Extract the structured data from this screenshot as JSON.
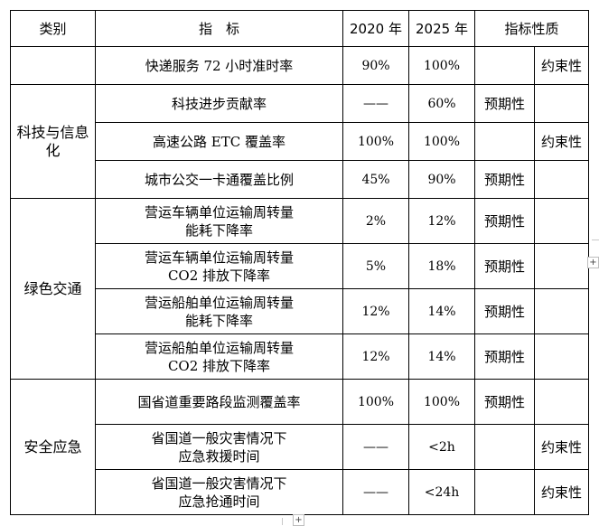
{
  "table": {
    "headers": [
      "类别",
      "指　标",
      "2020 年",
      "2025 年",
      "指标性质"
    ],
    "categories": {
      "kejian": "科技与信息化",
      "green": "绿色交通",
      "safety": "安全应急"
    },
    "rows": [
      {
        "indicator": "快递服务 72 小时准时率",
        "v2020": "90%",
        "v2025": "100%",
        "expected": "",
        "binding": "约束性"
      },
      {
        "indicator": "科技进步贡献率",
        "v2020": "——",
        "v2025": "60%",
        "expected": "预期性",
        "binding": ""
      },
      {
        "indicator": "高速公路 ETC 覆盖率",
        "v2020": "100%",
        "v2025": "100%",
        "expected": "",
        "binding": "约束性"
      },
      {
        "indicator": "城市公交一卡通覆盖比例",
        "v2020": "45%",
        "v2025": "90%",
        "expected": "预期性",
        "binding": ""
      },
      {
        "indicator_l1": "营运车辆单位运输周转量",
        "indicator_l2": "能耗下降率",
        "v2020": "2%",
        "v2025": "12%",
        "expected": "预期性",
        "binding": ""
      },
      {
        "indicator_l1": "营运车辆单位运输周转量",
        "indicator_l2": "CO2 排放下降率",
        "v2020": "5%",
        "v2025": "18%",
        "expected": "预期性",
        "binding": ""
      },
      {
        "indicator_l1": "营运船舶单位运输周转量",
        "indicator_l2": "能耗下降率",
        "v2020": "12%",
        "v2025": "14%",
        "expected": "预期性",
        "binding": ""
      },
      {
        "indicator_l1": "营运船舶单位运输周转量",
        "indicator_l2": "CO2 排放下降率",
        "v2020": "12%",
        "v2025": "14%",
        "expected": "预期性",
        "binding": ""
      },
      {
        "indicator": "国省道重要路段监测覆盖率",
        "v2020": "100%",
        "v2025": "100%",
        "expected": "预期性",
        "binding": ""
      },
      {
        "indicator_l1": "省国道一般灾害情况下",
        "indicator_l2": "应急救援时间",
        "v2020": "——",
        "v2025": "<2h",
        "expected": "",
        "binding": "约束性"
      },
      {
        "indicator_l1": "省国道一般灾害情况下",
        "indicator_l2": "应急抢通时间",
        "v2020": "——",
        "v2025": "<24h",
        "expected": "",
        "binding": "约束性"
      }
    ]
  },
  "ui": {
    "plus_glyph": "+"
  }
}
